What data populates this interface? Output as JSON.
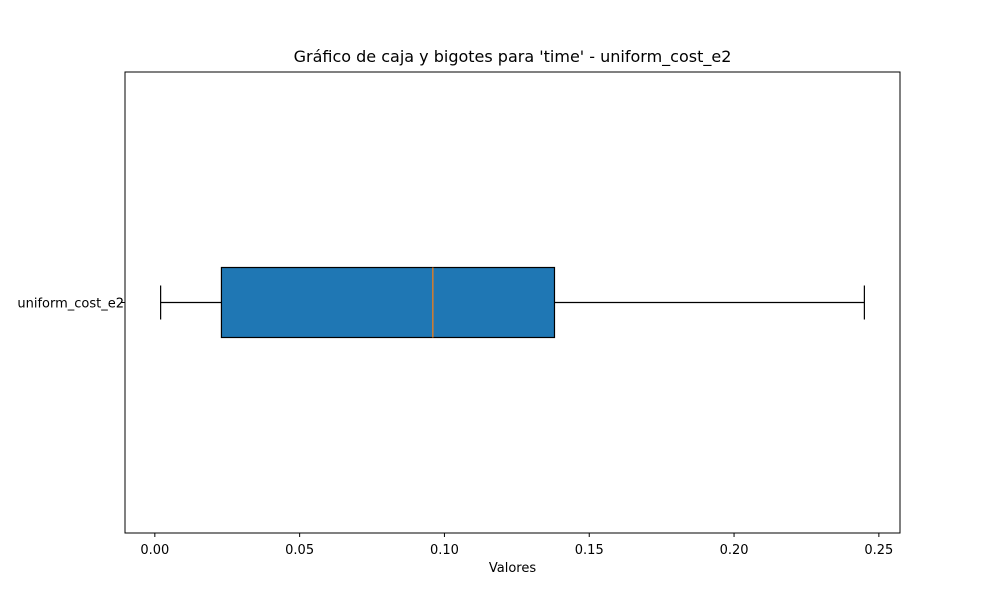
{
  "colors": {
    "box_fill": "#1f77b4",
    "median": "#ff7f0e",
    "edge": "#000000"
  },
  "chart_data": {
    "type": "boxplot",
    "title": "Gráfico de caja y bigotes para 'time' - uniform_cost_e2",
    "xlabel": "Valores",
    "ylabel": "",
    "orientation": "horizontal",
    "xlim": [
      -0.0103,
      0.2573
    ],
    "xticks": [
      0.0,
      0.05,
      0.1,
      0.15,
      0.2,
      0.25
    ],
    "xtick_labels": [
      "0.00",
      "0.05",
      "0.10",
      "0.15",
      "0.20",
      "0.25"
    ],
    "categories": [
      "uniform_cost_e2"
    ],
    "boxes": [
      {
        "label": "uniform_cost_e2",
        "whisker_low": 0.002,
        "q1": 0.023,
        "median": 0.096,
        "q3": 0.138,
        "whisker_high": 0.245
      }
    ],
    "grid": false,
    "legend": false
  }
}
